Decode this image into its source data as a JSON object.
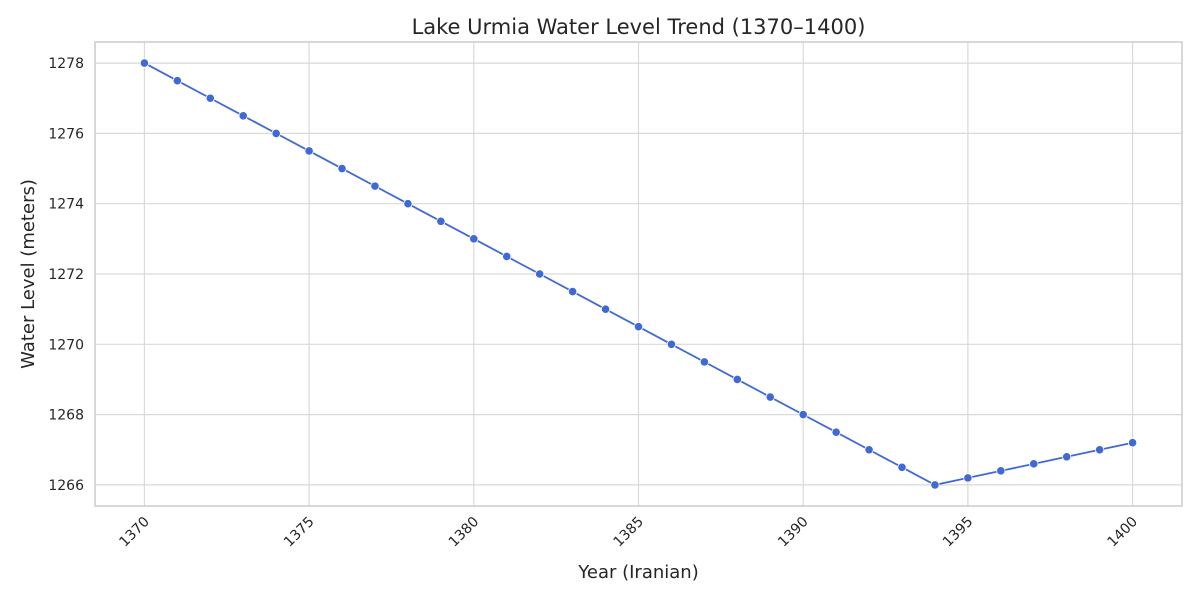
{
  "chart_data": {
    "type": "line",
    "title": "Lake Urmia Water Level Trend (1370–1400)",
    "xlabel": "Year (Iranian)",
    "ylabel": "Water Level (meters)",
    "xlim": [
      1368.5,
      1401.5
    ],
    "ylim": [
      1265.4,
      1278.6
    ],
    "xticks": [
      1370,
      1375,
      1380,
      1385,
      1390,
      1395,
      1400
    ],
    "yticks": [
      1266,
      1268,
      1270,
      1272,
      1274,
      1276,
      1278
    ],
    "grid": true,
    "series": [
      {
        "name": "Water Level",
        "color": "#4169d6",
        "x": [
          1370,
          1371,
          1372,
          1373,
          1374,
          1375,
          1376,
          1377,
          1378,
          1379,
          1380,
          1381,
          1382,
          1383,
          1384,
          1385,
          1386,
          1387,
          1388,
          1389,
          1390,
          1391,
          1392,
          1393,
          1394,
          1395,
          1396,
          1397,
          1398,
          1399,
          1400
        ],
        "y": [
          1278.0,
          1277.5,
          1277.0,
          1276.5,
          1276.0,
          1275.5,
          1275.0,
          1274.5,
          1274.0,
          1273.5,
          1273.0,
          1272.5,
          1272.0,
          1271.5,
          1271.0,
          1270.5,
          1270.0,
          1269.5,
          1269.0,
          1268.5,
          1268.0,
          1267.5,
          1267.0,
          1266.5,
          1266.0,
          1266.2,
          1266.4,
          1266.6,
          1266.8,
          1267.0,
          1267.2
        ]
      }
    ]
  }
}
